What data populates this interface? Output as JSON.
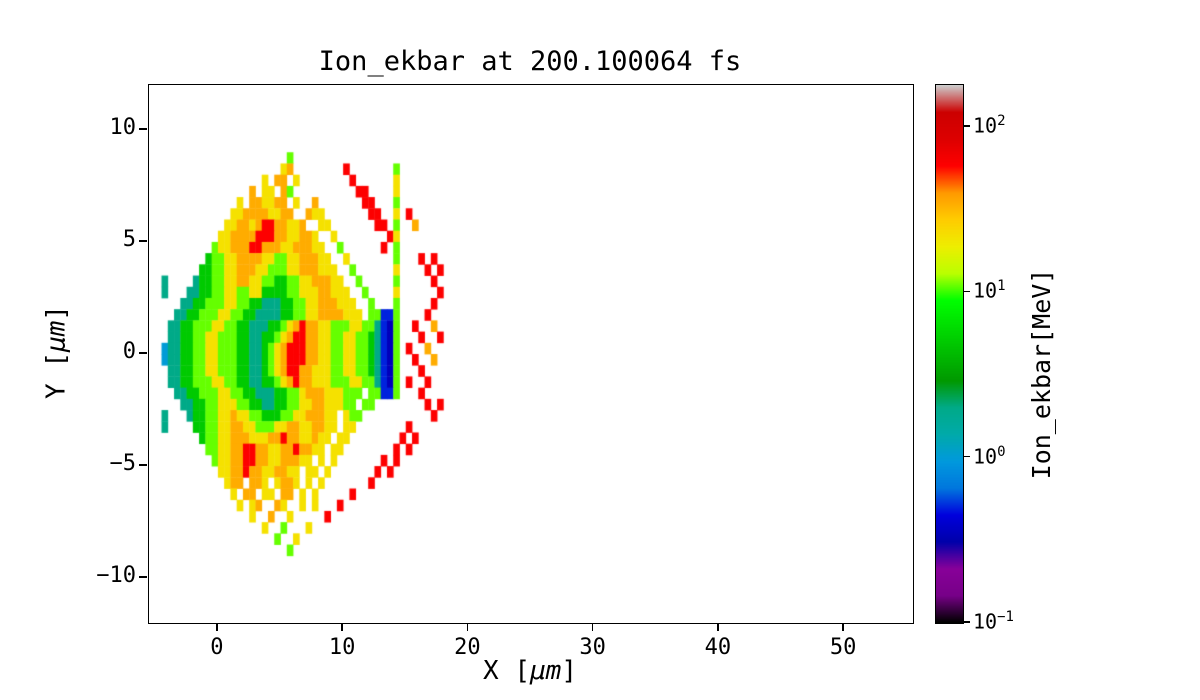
{
  "chart_data": {
    "type": "heatmap",
    "title": "Ion_ekbar at 200.100064 fs",
    "xlabel": "X [μm]",
    "ylabel": "Y [μm]",
    "xlabel_parts": {
      "prefix": "X [",
      "unit": "μm",
      "suffix": "]"
    },
    "ylabel_parts": {
      "prefix": "Y [",
      "unit": "μm",
      "suffix": "]"
    },
    "xlim": [
      -5.5,
      55.5
    ],
    "ylim": [
      -12,
      12
    ],
    "grid_lines": false,
    "xticks": [
      {
        "label": "0",
        "value": 0
      },
      {
        "label": "10",
        "value": 10
      },
      {
        "label": "20",
        "value": 20
      },
      {
        "label": "30",
        "value": 30
      },
      {
        "label": "40",
        "value": 40
      },
      {
        "label": "50",
        "value": 50
      }
    ],
    "yticks": [
      {
        "label": "10",
        "value": 10
      },
      {
        "label": "5",
        "value": 5
      },
      {
        "label": "0",
        "value": 0
      },
      {
        "label": "−5",
        "value": -5
      },
      {
        "label": "−10",
        "value": -10
      }
    ],
    "colorbar": {
      "label": "Ion_ekbar[MeV]",
      "scale": "log",
      "vmin": 0.1,
      "vmax": 180,
      "ticks": [
        {
          "base": "10",
          "exp": "2",
          "value": 100
        },
        {
          "base": "10",
          "exp": "1",
          "value": 10
        },
        {
          "base": "10",
          "exp": "0",
          "value": 1
        },
        {
          "base": "10",
          "exp": "−1",
          "value": 0.1
        }
      ],
      "colormap": "nipy_spectral",
      "colormap_stops": [
        [
          0.0,
          "#000000"
        ],
        [
          0.05,
          "#770088"
        ],
        [
          0.1,
          "#880099"
        ],
        [
          0.15,
          "#0000aa"
        ],
        [
          0.2,
          "#0000dd"
        ],
        [
          0.25,
          "#0077dd"
        ],
        [
          0.3,
          "#0099dd"
        ],
        [
          0.35,
          "#00aaaa"
        ],
        [
          0.4,
          "#00aa88"
        ],
        [
          0.45,
          "#009900"
        ],
        [
          0.5,
          "#00bb00"
        ],
        [
          0.55,
          "#00dd00"
        ],
        [
          0.6,
          "#00ff00"
        ],
        [
          0.65,
          "#bbff00"
        ],
        [
          0.7,
          "#eeee00"
        ],
        [
          0.75,
          "#ffcc00"
        ],
        [
          0.8,
          "#ff9900"
        ],
        [
          0.85,
          "#ff0000"
        ],
        [
          0.9,
          "#dd0000"
        ],
        [
          0.95,
          "#cc0000"
        ],
        [
          1.0,
          "#cccccc"
        ]
      ]
    },
    "grid": {
      "comment": "Coarse 0.5um sampling of the ion mean kinetic energy map. x0,y0 = top-left cell edge; chars map to MeV via value_key; '.' = no data (white).",
      "x0": -5,
      "y0": 9,
      "cell": 0.5,
      "cols": 52,
      "unit": "MeV",
      "value_key": {
        "1": 0.35,
        "2": 0.5,
        "3": 1.0,
        "4": 2.0,
        "5": 5,
        "6": 11,
        "7": 22,
        "8": 35,
        "9": 60
      },
      "rows": [
        ".....................6..............................",
        "....................78........9.......6.............",
        ".................7.88.7........9......7.............",
        "...............8.77.86..........99....7.............",
        ".............7.887788.7..8.......99...6.............",
        "............7788887788..877.......99..7.9...........",
        "...........7788789988778..77.......99.6..8..........",
        "..........7788889998877887..7........97.............",
        ".........677888998887788877..6......9.6.............",
        "........56677888877667788877..7.......6...9.9.......",
        ".......5566778887766677888777..6......7....9.9......",
        ".4....455667788776655667788877..6.....6.....9.......",
        ".4...44556677667755556677788777..6....7......9......",
        "....4455666776655444556677888777..6...6.....9.......",
        "...445566677665544445566778888777.66226....9........",
        "..4455666776655444556789887766677664216..9..8.......",
        "..4455667766655445567899887766776654216...9..9......",
        ".34455667766655445678999887766776654216.9..8........",
        ".34455667766655445678999887766776654216..9..8.......",
        "..4455667766655445678998877766776654216...9.........",
        "..4455666776655445567898877766677664216.9..9........",
        "...445566677665544455667888777666.66226...9.........",
        "....4455667776655445566778877766.66........9.9......",
        ".4...455667787766555667788877.766...........9.......",
        ".4....55667788776667788778877.77........9...........",
        ".......566778887778898877877.77........9.9..........",
        "........6677889988778898877.77........9.9...........",
        ".........6778899887788877.7.7.......9.9.............",
        "..........7788988778877.77.7.......9.9..............",
        "...........788.887.7887.7.7.......9.................",
        "............7.88.77.88.7.7.....9....................",
        ".............7.78..87..7.7...9......................",
        "...............7..8..7.....9........................",
        ".................7..6...7...........................",
        "...................6..7.............................",
        ".....................6.............................."
      ]
    }
  }
}
